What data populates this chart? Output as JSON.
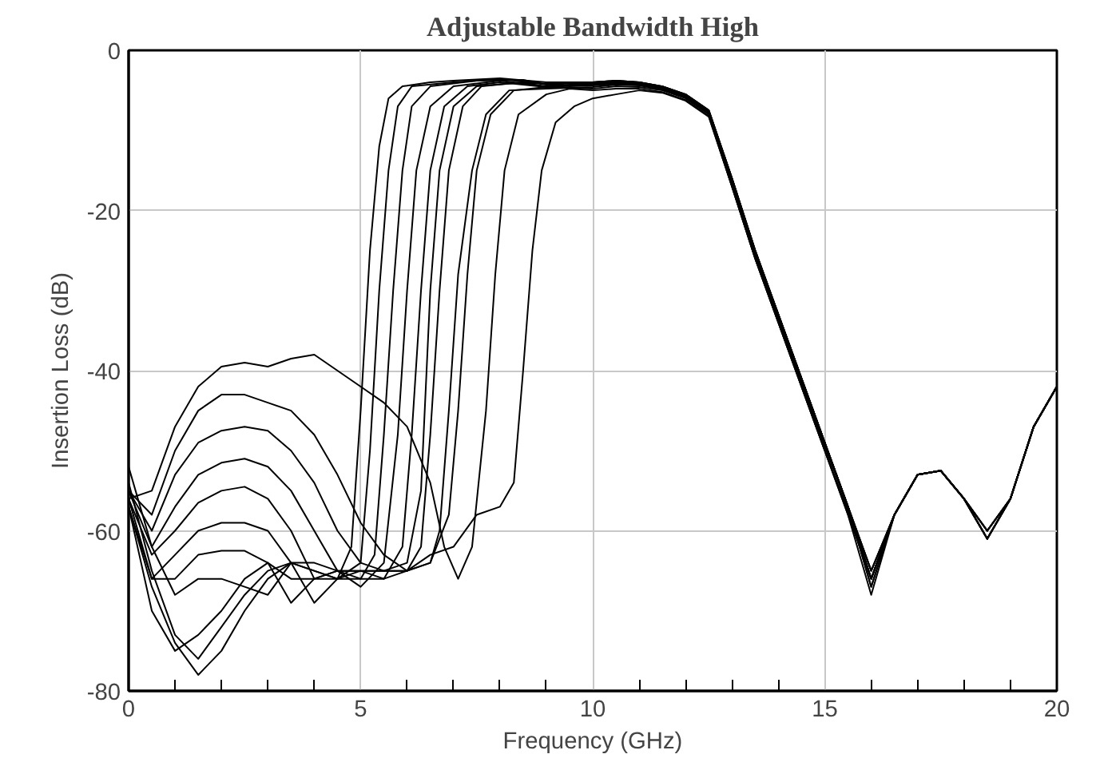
{
  "chart_data": {
    "type": "line",
    "title": "Adjustable Bandwidth High",
    "xlabel": "Frequency (GHz)",
    "ylabel": "Insertion Loss (dB)",
    "xlim": [
      0,
      20
    ],
    "ylim": [
      -80,
      0
    ],
    "xticks": [
      0,
      {
        "value": 1,
        "label": null
      },
      {
        "value": 2,
        "label": null
      },
      {
        "value": 3,
        "label": null
      },
      {
        "value": 4,
        "label": null
      },
      5,
      {
        "value": 6,
        "label": null
      },
      {
        "value": 7,
        "label": null
      },
      {
        "value": 8,
        "label": null
      },
      {
        "value": 9,
        "label": null
      },
      10,
      {
        "value": 11,
        "label": null
      },
      {
        "value": 12,
        "label": null
      },
      {
        "value": 13,
        "label": null
      },
      {
        "value": 14,
        "label": null
      },
      15,
      {
        "value": 16,
        "label": null
      },
      {
        "value": 17,
        "label": null
      },
      {
        "value": 18,
        "label": null
      },
      {
        "value": 19,
        "label": null
      },
      20
    ],
    "yticks": [
      0,
      {
        "value": -20,
        "label": "-20"
      },
      {
        "value": -40,
        "label": "-40"
      },
      {
        "value": -60,
        "label": "-60"
      },
      {
        "value": -80,
        "label": "-80"
      }
    ],
    "grid": true,
    "line_style": "solid",
    "marker": "none",
    "series": [
      {
        "color": "#000000",
        "x": [
          0,
          0.5,
          1,
          1.5,
          2,
          2.5,
          3,
          3.5,
          4,
          4.5,
          4.8,
          5.0,
          5.2,
          5.4,
          5.6,
          5.9,
          6.5,
          7,
          8,
          9,
          10,
          10.5,
          11,
          11.5,
          12,
          12.5,
          13,
          13.5,
          14,
          14.5,
          15,
          15.5,
          16,
          16.5,
          17,
          17.5,
          18,
          18.5,
          19,
          19.5,
          20
        ],
        "values": [
          -54,
          -65,
          -73,
          -76,
          -72,
          -68,
          -65,
          -64,
          -65,
          -66,
          -62,
          -45,
          -25,
          -12,
          -6,
          -4.5,
          -4,
          -3.8,
          -3.5,
          -4,
          -4,
          -3.8,
          -4,
          -4.5,
          -5.5,
          -7.5,
          -16,
          -25,
          -33,
          -41,
          -49,
          -57,
          -65,
          -58,
          -53,
          -52.5,
          -56,
          -60,
          -56,
          -47,
          -42
        ]
      },
      {
        "color": "#000000",
        "x": [
          0,
          0.5,
          1,
          1.5,
          2,
          2.5,
          3,
          3.5,
          4,
          4.5,
          5,
          5.2,
          5.4,
          5.6,
          5.8,
          6.1,
          7,
          8,
          9,
          10,
          10.5,
          11,
          11.5,
          12,
          12.5,
          13,
          13.5,
          14,
          14.5,
          15,
          15.5,
          16,
          16.5,
          17,
          17.5,
          18,
          18.5,
          19,
          19.5,
          20
        ],
        "values": [
          -57,
          -67,
          -74,
          -78,
          -75,
          -70,
          -66,
          -64,
          -65,
          -66,
          -64,
          -50,
          -30,
          -15,
          -7,
          -4.5,
          -4,
          -3.6,
          -4.2,
          -4,
          -3.8,
          -4,
          -4.5,
          -5.5,
          -7.5,
          -16,
          -25,
          -33,
          -41,
          -49,
          -57,
          -66,
          -58,
          -53,
          -52.5,
          -56,
          -61,
          -56,
          -47,
          -42
        ]
      },
      {
        "color": "#000000",
        "x": [
          0,
          0.5,
          1,
          1.5,
          2,
          2.5,
          3,
          3.5,
          4,
          4.5,
          5,
          5.3,
          5.5,
          5.7,
          5.9,
          6.1,
          6.5,
          7.5,
          8.5,
          9,
          10,
          10.5,
          11,
          11.5,
          12,
          12.5,
          13,
          13.5,
          14,
          14.5,
          15,
          15.5,
          16,
          16.5,
          17,
          17.5,
          18,
          18.5,
          19,
          19.5,
          20
        ],
        "values": [
          -52,
          -62,
          -68,
          -66,
          -66,
          -67,
          -68,
          -64,
          -64,
          -65,
          -66,
          -63,
          -48,
          -30,
          -15,
          -7,
          -4.5,
          -3.8,
          -3.7,
          -4.3,
          -4,
          -3.8,
          -4,
          -4.5,
          -5.5,
          -7.5,
          -16,
          -25,
          -33,
          -41,
          -49,
          -57,
          -65,
          -58,
          -53,
          -52.5,
          -56,
          -60,
          -56,
          -47,
          -42
        ]
      },
      {
        "color": "#000000",
        "x": [
          0,
          0.5,
          1,
          1.5,
          2,
          2.5,
          3,
          3.5,
          4,
          4.5,
          5,
          5.5,
          5.8,
          6.0,
          6.2,
          6.5,
          7,
          8,
          9,
          10,
          10.5,
          11,
          11.5,
          12,
          12.5,
          13,
          13.5,
          14,
          14.5,
          15,
          15.5,
          16,
          16.5,
          17,
          17.5,
          18,
          18.5,
          19,
          19.5,
          20
        ],
        "values": [
          -56,
          -66,
          -66,
          -63,
          -62.5,
          -62.5,
          -64,
          -69,
          -66,
          -65,
          -67,
          -64,
          -48,
          -30,
          -15,
          -7,
          -4.5,
          -3.8,
          -4.5,
          -4.1,
          -3.9,
          -4.1,
          -4.6,
          -5.6,
          -7.6,
          -16,
          -25,
          -33,
          -41,
          -49,
          -57,
          -67,
          -58,
          -53,
          -52.5,
          -56,
          -61,
          -56,
          -47,
          -42
        ]
      },
      {
        "color": "#000000",
        "x": [
          0,
          0.5,
          1,
          1.5,
          2,
          2.5,
          3,
          3.5,
          4,
          4.5,
          5,
          5.5,
          5.9,
          6.1,
          6.3,
          6.5,
          6.8,
          7.3,
          8,
          9,
          10,
          10.5,
          11,
          11.5,
          12,
          12.5,
          13,
          13.5,
          14,
          14.5,
          15,
          15.5,
          16,
          16.5,
          17,
          17.5,
          18,
          18.5,
          19,
          19.5,
          20
        ],
        "values": [
          -57,
          -66,
          -63,
          -60,
          -59,
          -59,
          -60,
          -64,
          -69,
          -66,
          -66,
          -66,
          -62,
          -48,
          -30,
          -15,
          -7,
          -4.5,
          -4,
          -4.6,
          -4.2,
          -4,
          -4.1,
          -4.6,
          -5.6,
          -7.6,
          -16.5,
          -25.5,
          -33,
          -41,
          -49,
          -57,
          -65,
          -58,
          -53,
          -52.5,
          -56,
          -60,
          -56,
          -47,
          -42
        ]
      },
      {
        "color": "#000000",
        "x": [
          0,
          0.5,
          1,
          1.5,
          2,
          2.5,
          3,
          3.5,
          4,
          4.5,
          5,
          5.5,
          6,
          6.3,
          6.5,
          6.7,
          7,
          7.5,
          8.5,
          9,
          10,
          10.5,
          11,
          11.5,
          12,
          12.5,
          13,
          13.5,
          14,
          14.5,
          15,
          15.5,
          16,
          16.5,
          17,
          17.5,
          18,
          18.5,
          19,
          19.5,
          20
        ],
        "values": [
          -56,
          -63,
          -60,
          -56.5,
          -55,
          -54.5,
          -56,
          -60,
          -66,
          -66,
          -65,
          -65,
          -64,
          -55,
          -30,
          -15,
          -7,
          -4.5,
          -4,
          -4.6,
          -4.3,
          -4.1,
          -4.2,
          -4.7,
          -5.7,
          -7.7,
          -16.5,
          -25.5,
          -33,
          -41,
          -49,
          -57,
          -66,
          -58,
          -53,
          -52.5,
          -56,
          -61,
          -56,
          -47,
          -42
        ]
      },
      {
        "color": "#000000",
        "x": [
          0,
          0.5,
          1,
          1.5,
          2,
          2.5,
          3,
          3.5,
          4,
          4.5,
          5,
          5.5,
          6,
          6.3,
          6.5,
          6.7,
          6.9,
          7.2,
          7.6,
          8.5,
          9.5,
          10,
          10.5,
          11,
          11.5,
          12,
          12.5,
          13,
          13.5,
          14,
          14.5,
          15,
          15.5,
          16,
          16.5,
          17,
          17.5,
          18,
          18.5,
          19,
          19.5,
          20
        ],
        "values": [
          -55,
          -62,
          -57,
          -53,
          -51.5,
          -51,
          -52,
          -55,
          -60,
          -65,
          -65,
          -65,
          -65,
          -62,
          -48,
          -30,
          -15,
          -7,
          -4.5,
          -4,
          -4.5,
          -4.4,
          -4.2,
          -4.3,
          -4.8,
          -5.8,
          -7.8,
          -16.5,
          -25.5,
          -33.5,
          -41.5,
          -49,
          -57,
          -66,
          -58,
          -53,
          -52.5,
          -56,
          -61,
          -56,
          -47,
          -42
        ]
      },
      {
        "color": "#000000",
        "x": [
          0,
          0.5,
          1,
          1.5,
          2,
          2.5,
          3,
          3.5,
          4,
          4.5,
          5,
          5.5,
          6,
          6.5,
          6.7,
          6.9,
          7.1,
          7.4,
          7.7,
          8.2,
          9,
          10,
          10.5,
          11,
          11.5,
          12,
          12.5,
          13,
          13.5,
          14,
          14.5,
          15,
          15.5,
          16,
          16.5,
          17,
          17.5,
          18,
          18.5,
          19,
          19.5,
          20
        ],
        "values": [
          -55,
          -60,
          -53,
          -49,
          -47.5,
          -47,
          -47.5,
          -50,
          -54,
          -60,
          -64,
          -65,
          -65,
          -64,
          -60,
          -45,
          -28,
          -15,
          -8,
          -5,
          -4.8,
          -4.6,
          -4.3,
          -4.4,
          -4.9,
          -5.9,
          -7.9,
          -16.5,
          -25.5,
          -33.5,
          -41.5,
          -49.5,
          -57,
          -67,
          -58,
          -53,
          -52.5,
          -56,
          -60,
          -56,
          -47,
          -42
        ]
      },
      {
        "color": "#000000",
        "x": [
          0,
          0.5,
          1,
          1.5,
          2,
          2.5,
          3,
          3.5,
          4,
          4.5,
          5,
          5.5,
          6,
          6.5,
          6.9,
          7.1,
          7.3,
          7.5,
          7.8,
          8.3,
          9,
          10,
          10.5,
          11,
          11.5,
          12,
          12.5,
          13,
          13.5,
          14,
          14.5,
          15,
          15.5,
          16,
          16.5,
          17,
          17.5,
          18,
          18.5,
          19,
          19.5,
          20
        ],
        "values": [
          -55,
          -58,
          -50,
          -45,
          -43,
          -43,
          -44,
          -45,
          -48,
          -53,
          -59,
          -63,
          -65,
          -64,
          -58,
          -45,
          -28,
          -15,
          -8,
          -5,
          -4.6,
          -4.8,
          -4.5,
          -4.6,
          -5,
          -6,
          -8,
          -17,
          -26,
          -34,
          -42,
          -50,
          -57.5,
          -66,
          -58,
          -53,
          -52.5,
          -56,
          -61,
          -56,
          -47,
          -42
        ]
      },
      {
        "color": "#000000",
        "x": [
          0,
          0.5,
          1,
          1.5,
          2,
          2.5,
          3,
          3.5,
          4,
          4.5,
          5,
          5.5,
          6,
          6.5,
          6.8,
          7.1,
          7.4,
          7.7,
          7.9,
          8.1,
          8.4,
          9,
          9.5,
          10,
          10.5,
          11,
          11.5,
          12,
          12.5,
          13,
          13.5,
          14,
          14.5,
          15,
          15.5,
          16,
          16.5,
          17,
          17.5,
          18,
          18.5,
          19,
          19.5,
          20
        ],
        "values": [
          -56,
          -55,
          -47,
          -42,
          -39.5,
          -39,
          -39.5,
          -38.5,
          -38,
          -40,
          -42,
          -44,
          -47,
          -54,
          -62,
          -66,
          -62,
          -45,
          -28,
          -15,
          -8,
          -5.5,
          -4.8,
          -5,
          -4.8,
          -4.8,
          -5.2,
          -6.2,
          -8.2,
          -17,
          -26,
          -34,
          -42,
          -50,
          -58,
          -68,
          -58,
          -53,
          -52.5,
          -56,
          -61,
          -56,
          -47,
          -42
        ]
      },
      {
        "color": "#000000",
        "x": [
          0,
          0.5,
          1,
          1.5,
          2,
          2.5,
          3,
          3.5,
          4,
          4.5,
          5,
          5.5,
          6,
          6.5,
          7,
          7.5,
          8,
          8.3,
          8.5,
          8.7,
          8.9,
          9.2,
          9.6,
          10,
          10.5,
          11,
          11.5,
          12,
          12.5,
          13,
          13.5,
          14,
          14.5,
          15,
          15.5,
          16,
          16.5,
          17,
          17.5,
          18,
          18.5,
          19,
          19.5,
          20
        ],
        "values": [
          -57,
          -70,
          -75,
          -73,
          -70,
          -66,
          -64,
          -66,
          -66,
          -65,
          -65,
          -66,
          -65,
          -63,
          -62,
          -58,
          -57,
          -54,
          -40,
          -25,
          -15,
          -9,
          -7,
          -6,
          -5.5,
          -5,
          -5.3,
          -6.3,
          -8.3,
          -17,
          -26,
          -34,
          -42,
          -50,
          -58,
          -66,
          -58,
          -53,
          -52.5,
          -56,
          -60,
          -56,
          -47,
          -42
        ]
      }
    ]
  }
}
